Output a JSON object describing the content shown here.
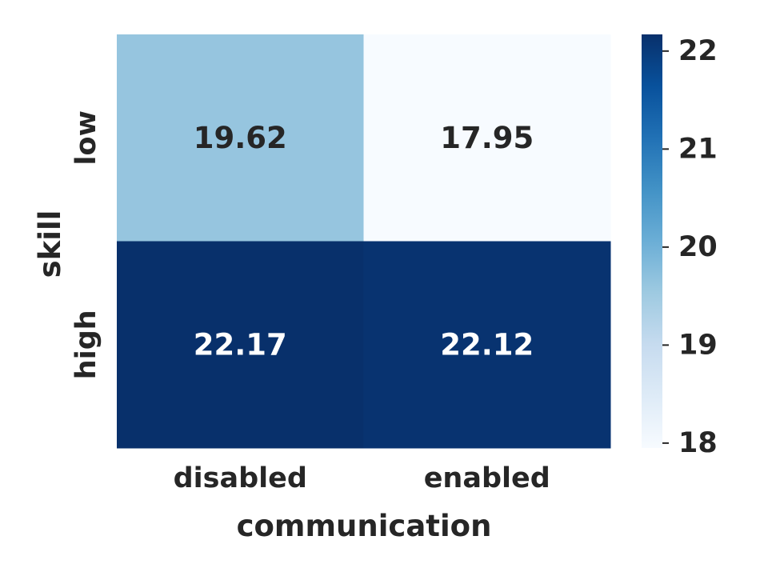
{
  "chart_data": {
    "type": "heatmap",
    "title": "",
    "xlabel": "communication",
    "ylabel": "skill",
    "x_categories": [
      "disabled",
      "enabled"
    ],
    "y_categories": [
      "low",
      "high"
    ],
    "values": [
      [
        19.62,
        17.95
      ],
      [
        22.17,
        22.12
      ]
    ],
    "value_labels": [
      [
        "19.62",
        "17.95"
      ],
      [
        "22.17",
        "22.12"
      ]
    ],
    "colormap": "Blues",
    "color_range": [
      17.95,
      22.17
    ],
    "colorbar": {
      "ticks": [
        18,
        19,
        20,
        21,
        22
      ],
      "tick_labels": [
        "18",
        "19",
        "20",
        "21",
        "22"
      ]
    },
    "annotation_colors": {
      "dark_text": "#262626",
      "light_text": "#ffffff"
    }
  }
}
